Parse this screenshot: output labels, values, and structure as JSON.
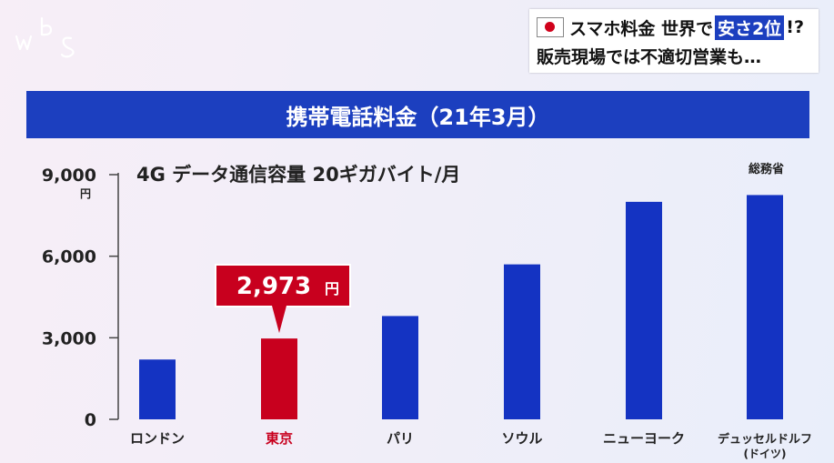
{
  "logo": {
    "text": "WBS"
  },
  "headline": {
    "line1_pre": "スマホ料金 世界で",
    "line1_highlight": "安さ2位",
    "line1_post": "!?",
    "line2": "販売現場では不適切営業も…"
  },
  "banner": {
    "title": "携帯電話料金（21年3月）"
  },
  "chart_data": {
    "type": "bar",
    "subtitle": "4G データ通信容量 20ギガバイト/月",
    "source": "総務省",
    "unit": "円",
    "categories": [
      "ロンドン",
      "東京",
      "パリ",
      "ソウル",
      "ニューヨーク",
      "デュッセルドルフ"
    ],
    "category_sublabels": [
      "",
      "",
      "",
      "",
      "",
      "(ドイツ)"
    ],
    "values": [
      2200,
      2973,
      3800,
      5700,
      8000,
      8250
    ],
    "highlight_index": 1,
    "highlight_label": "2,973",
    "y_ticks": [
      0,
      3000,
      6000,
      9000
    ],
    "y_tick_labels": [
      "0",
      "3,000",
      "6,000",
      "9,000"
    ],
    "ylim": [
      0,
      9000
    ],
    "colors": {
      "bar": "#1433c2",
      "highlight": "#c8001e",
      "label_text": "#222222",
      "highlight_text": "#c8001e"
    }
  }
}
